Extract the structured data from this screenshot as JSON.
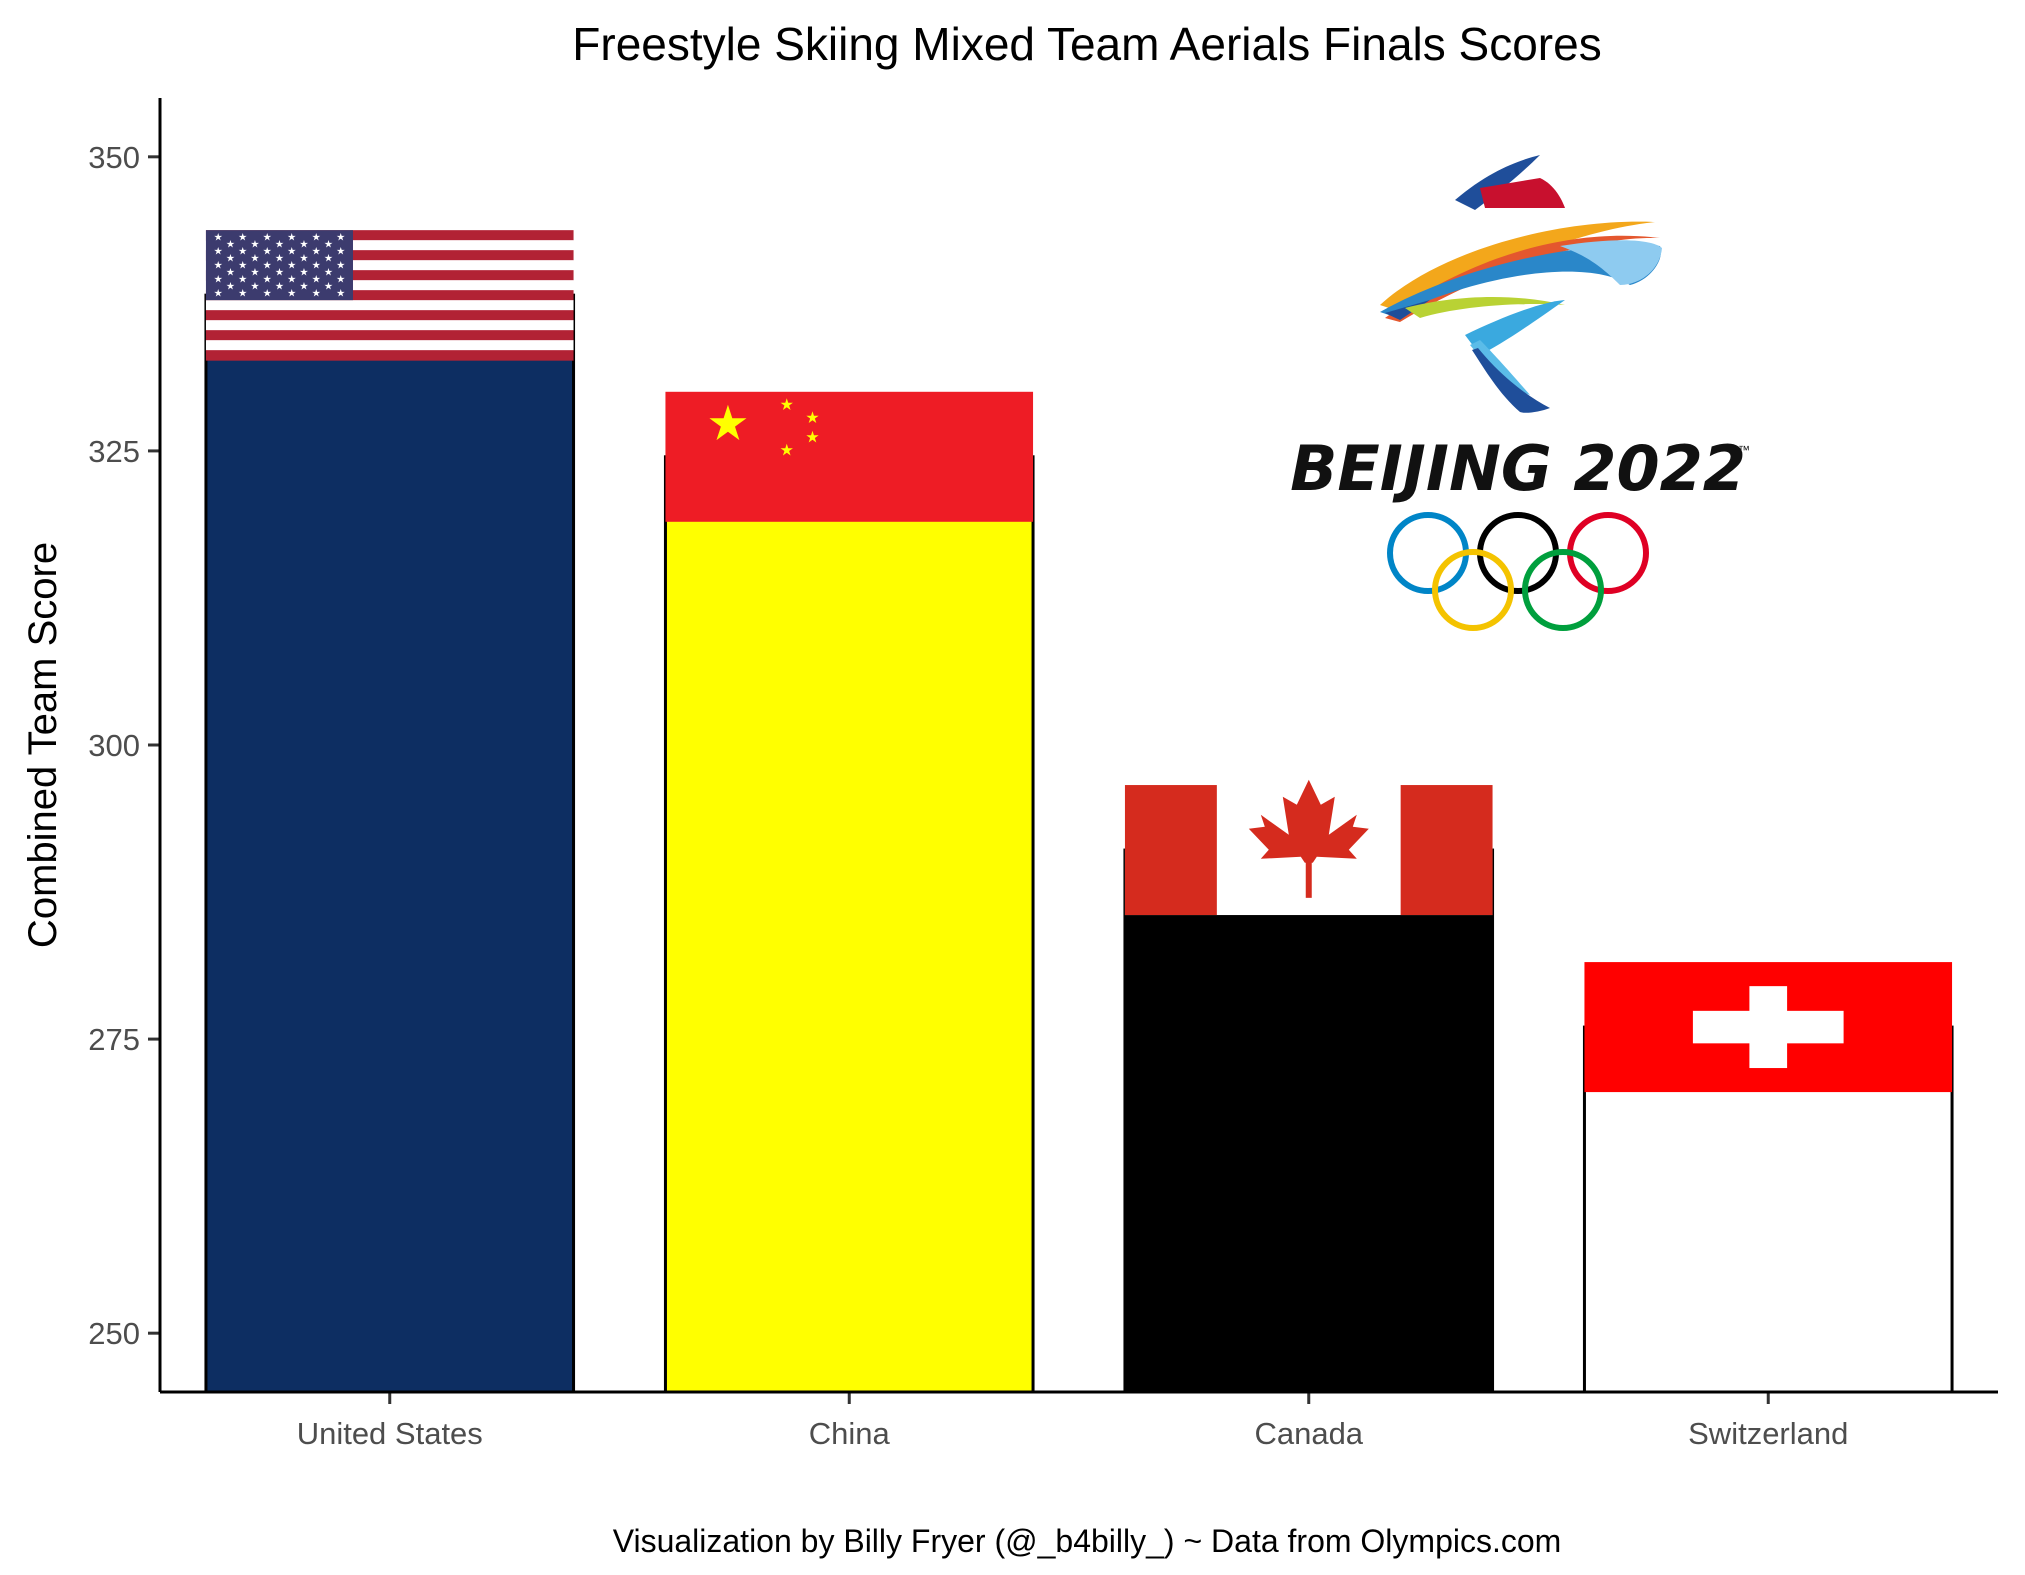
{
  "chart_data": {
    "type": "bar",
    "title": "Freestyle Skiing Mixed Team Aerials Finals Scores",
    "xlabel": "",
    "ylabel": "Combined Team Score",
    "caption": "Visualization by Billy Fryer (@_b4billy_) ~ Data from Olympics.com",
    "categories": [
      "United States",
      "China",
      "Canada",
      "Switzerland"
    ],
    "values": [
      338.24,
      324.5,
      291.07,
      276.02
    ],
    "ylim": [
      245,
      355
    ],
    "yticks": [
      250,
      275,
      300,
      325,
      350
    ],
    "grid": false,
    "bar_colors": [
      "#0d2e62",
      "#ffff00",
      "#000000",
      "#ffffff"
    ],
    "flags": [
      "us-flag",
      "china-flag",
      "canada-flag",
      "switzerland-flag"
    ]
  },
  "logo": {
    "icon": "beijing-2022-emblem",
    "text": "BEIJING 2022",
    "trademark": "™",
    "rings": [
      "#0085c7",
      "#000000",
      "#df0024",
      "#f4c300",
      "#009f3d"
    ]
  }
}
